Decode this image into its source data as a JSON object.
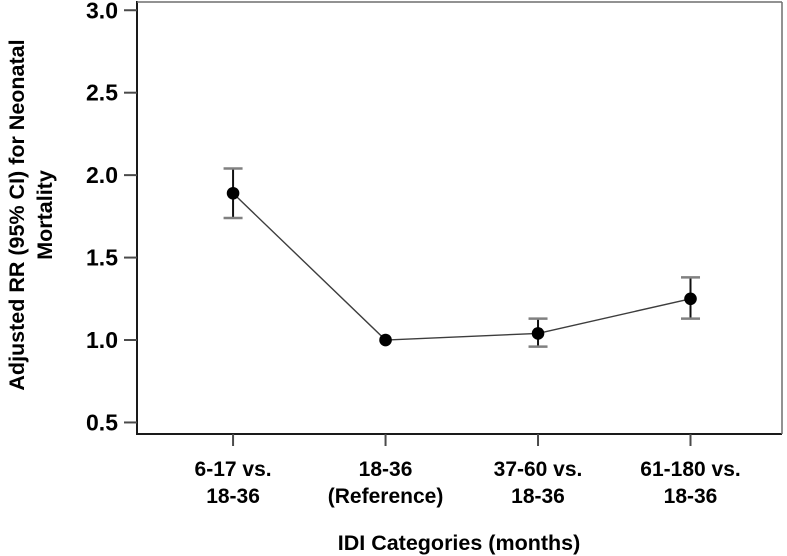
{
  "chart_data": {
    "type": "line",
    "title": "",
    "xlabel": "IDI Categories (months)",
    "ylabel": "Adjusted RR (95% CI) for Neonatal Mortality",
    "ylabel_lines": [
      "Adjusted RR (95% CI) for Neonatal",
      "Mortality"
    ],
    "categories": [
      [
        "6-17 vs.",
        "18-36"
      ],
      [
        "18-36",
        "(Reference)"
      ],
      [
        "37-60 vs.",
        "18-36"
      ],
      [
        "61-180 vs.",
        "18-36"
      ]
    ],
    "x": [
      1,
      2,
      3,
      4
    ],
    "series": [
      {
        "name": "Adjusted RR",
        "values": [
          1.89,
          1.0,
          1.04,
          1.25
        ],
        "ci_low": [
          1.74,
          null,
          0.96,
          1.13
        ],
        "ci_high": [
          2.04,
          null,
          1.13,
          1.38
        ]
      }
    ],
    "yticks": [
      0.5,
      1.0,
      1.5,
      2.0,
      2.5,
      3.0
    ],
    "ytick_labels": [
      "0.5",
      "1.0",
      "1.5",
      "2.0",
      "2.5",
      "3.0"
    ],
    "ylim": [
      0.43,
      3.05
    ],
    "xlim": [
      0.37,
      4.6
    ],
    "grid": false,
    "legend": "none",
    "marker": "filled-circle",
    "colors": {
      "marker": "#000000",
      "line": "#3d3d3d",
      "error_line": "#111111",
      "error_cap": "#808080",
      "axis": "#1a1a1a",
      "frame": "#6e6e6e",
      "tick": "#4a4a4a",
      "text": "#000000",
      "background": "#ffffff"
    }
  }
}
